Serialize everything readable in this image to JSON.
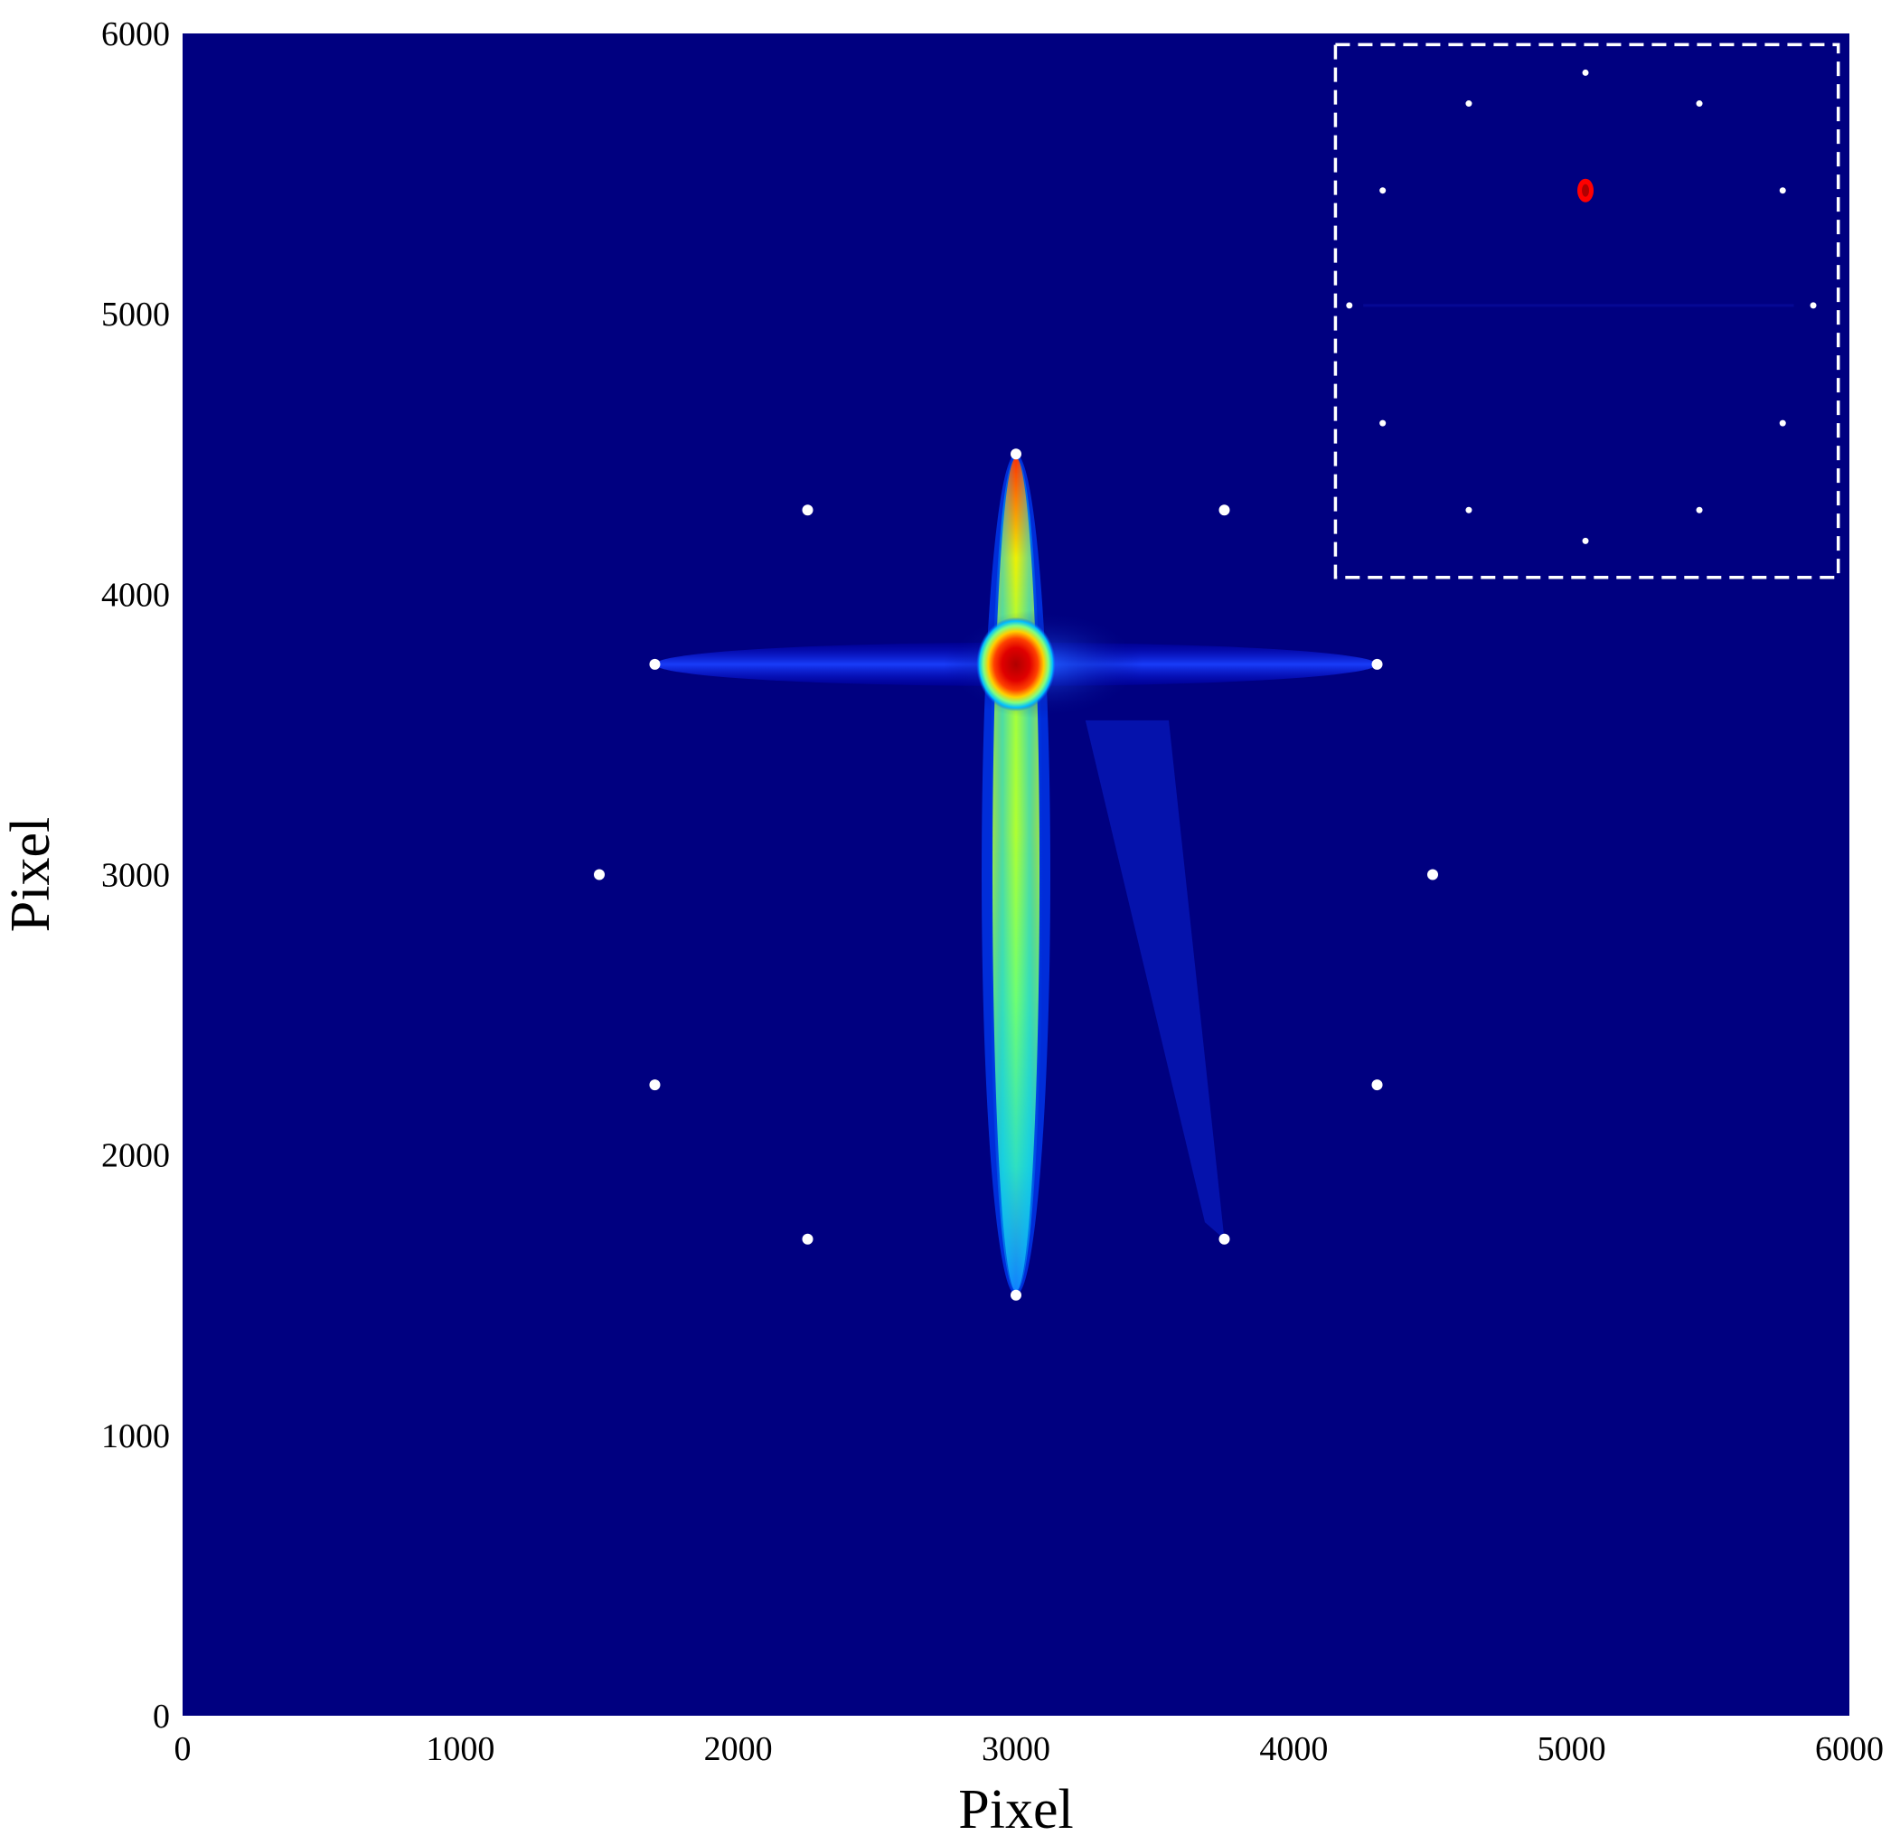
{
  "chart_data": {
    "type": "heatmap",
    "title": "",
    "xlabel": "Pixel",
    "ylabel": "Pixel",
    "xlim": [
      0,
      6000
    ],
    "ylim": [
      0,
      6000
    ],
    "x_ticks": [
      "0",
      "1000",
      "2000",
      "3000",
      "4000",
      "5000",
      "6000"
    ],
    "y_ticks": [
      "0",
      "1000",
      "2000",
      "3000",
      "4000",
      "5000",
      "6000"
    ],
    "grid": false,
    "legend": "none",
    "colormap": "jet",
    "background_color": "#000080",
    "point_color": "#ffffff",
    "main_points": [
      {
        "x": 3000,
        "y": 4500
      },
      {
        "x": 2250,
        "y": 4300
      },
      {
        "x": 3750,
        "y": 4300
      },
      {
        "x": 1700,
        "y": 3750
      },
      {
        "x": 4300,
        "y": 3750
      },
      {
        "x": 1500,
        "y": 3000
      },
      {
        "x": 4500,
        "y": 3000
      },
      {
        "x": 1700,
        "y": 2250
      },
      {
        "x": 4300,
        "y": 2250
      },
      {
        "x": 2250,
        "y": 1700
      },
      {
        "x": 3750,
        "y": 1700
      },
      {
        "x": 3000,
        "y": 1500
      }
    ],
    "hotspot": {
      "x": 3000,
      "y": 3750,
      "peak_color": "#cc0000"
    },
    "vertical_streak": {
      "x": 3000,
      "y_from": 1500,
      "y_to": 4500
    },
    "horizontal_streak": {
      "y": 3750,
      "x_from": 1700,
      "x_to": 4300
    },
    "inset": {
      "region": {
        "x_from": 4150,
        "x_to": 5960,
        "y_from": 4060,
        "y_to": 5960
      },
      "border": "dashed white",
      "points": [
        {
          "x": 5050,
          "y": 5860
        },
        {
          "x": 4630,
          "y": 5750
        },
        {
          "x": 5460,
          "y": 5750
        },
        {
          "x": 4320,
          "y": 5440
        },
        {
          "x": 5760,
          "y": 5440
        },
        {
          "x": 4200,
          "y": 5030
        },
        {
          "x": 5870,
          "y": 5030
        },
        {
          "x": 4320,
          "y": 4610
        },
        {
          "x": 5760,
          "y": 4610
        },
        {
          "x": 4630,
          "y": 4300
        },
        {
          "x": 5460,
          "y": 4300
        },
        {
          "x": 5050,
          "y": 4190
        }
      ],
      "hotspot": {
        "x": 5050,
        "y": 5440,
        "color": "#ff0000"
      }
    }
  }
}
